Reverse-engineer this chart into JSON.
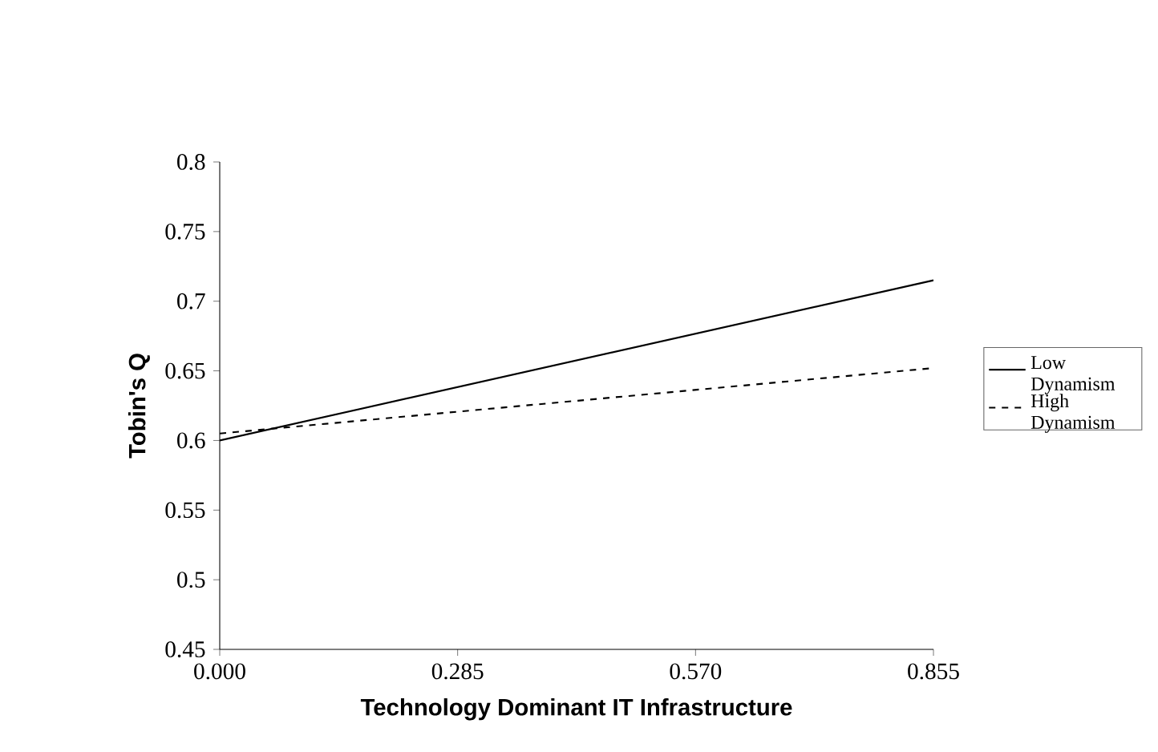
{
  "chart_data": {
    "type": "line",
    "xlabel": "Technology Dominant IT Infrastructure",
    "ylabel": "Tobin's Q",
    "x": [
      0,
      0.855
    ],
    "series": [
      {
        "name": "Low Dynamism",
        "color": "#000000",
        "line_style": "solid",
        "values": [
          0.6,
          0.715
        ]
      },
      {
        "name": "High Dynamism",
        "color": "#000000",
        "line_style": "dashed",
        "values": [
          0.605,
          0.652
        ]
      }
    ],
    "xlim": [
      0,
      0.855
    ],
    "xticks": [
      {
        "value": 0,
        "label": "0.000"
      },
      {
        "value": 0.285,
        "label": "0.285"
      },
      {
        "value": 0.57,
        "label": "0.570"
      },
      {
        "value": 0.855,
        "label": "0.855"
      }
    ],
    "ylim": [
      0.45,
      0.8
    ],
    "yticks": [
      0.45,
      0.5,
      0.55,
      0.6,
      0.65,
      0.7,
      0.75,
      0.8
    ],
    "grid": false,
    "legend": "right",
    "marker": "none"
  }
}
